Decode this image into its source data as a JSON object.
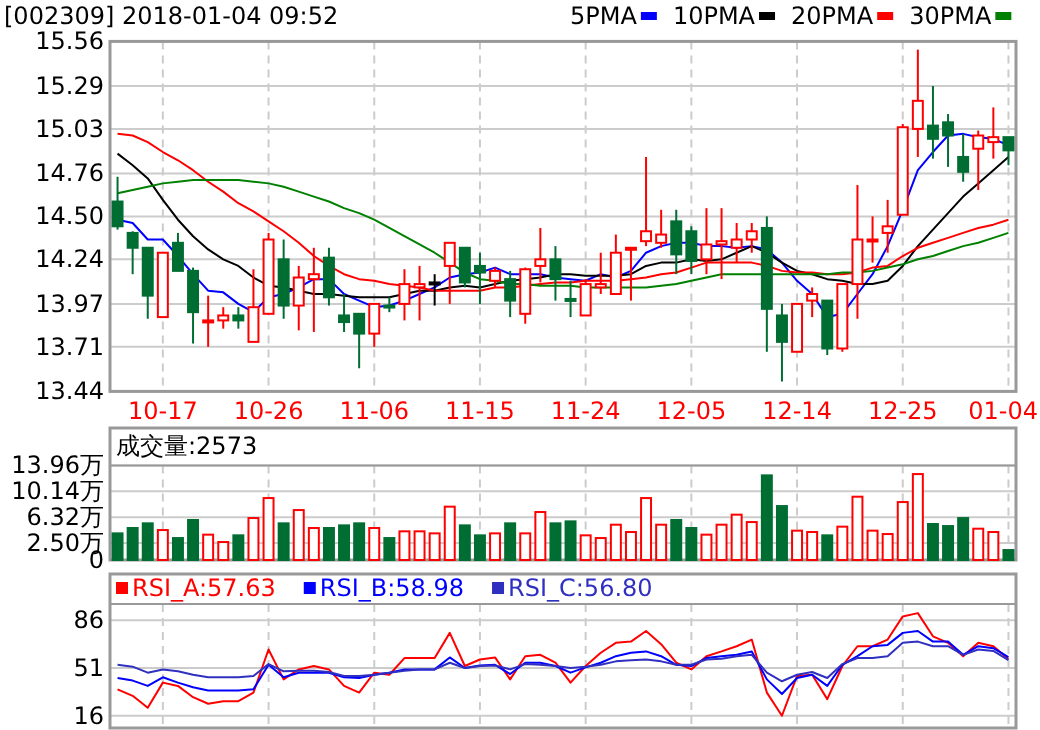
{
  "chart_data": [
    {
      "type": "candlestick",
      "title": "[002309] 2018-01-04 09:52",
      "legend": "top",
      "grid": true,
      "categories": [
        null,
        null,
        null,
        "10-17",
        null,
        null,
        null,
        null,
        null,
        null,
        "10-26",
        null,
        null,
        null,
        null,
        null,
        null,
        "11-06",
        null,
        null,
        null,
        null,
        null,
        null,
        "11-15",
        null,
        null,
        null,
        null,
        null,
        null,
        "11-24",
        null,
        null,
        null,
        null,
        null,
        null,
        "12-05",
        null,
        null,
        null,
        null,
        null,
        null,
        "12-14",
        null,
        null,
        null,
        null,
        null,
        null,
        "12-25",
        null,
        null,
        null,
        null,
        null,
        null,
        "01-04"
      ],
      "ohlc": [
        [
          14.59,
          14.74,
          14.42,
          14.44
        ],
        [
          14.4,
          14.41,
          14.15,
          14.31
        ],
        [
          14.31,
          14.31,
          13.88,
          14.02
        ],
        [
          13.89,
          14.28,
          13.89,
          14.28
        ],
        [
          14.34,
          14.4,
          14.17,
          14.17
        ],
        [
          14.17,
          14.19,
          13.73,
          13.92
        ],
        [
          13.86,
          14.02,
          13.71,
          13.87
        ],
        [
          13.87,
          13.95,
          13.82,
          13.9
        ],
        [
          13.9,
          13.95,
          13.82,
          13.87
        ],
        [
          13.74,
          14.18,
          13.74,
          13.95
        ],
        [
          13.91,
          14.4,
          13.91,
          14.36
        ],
        [
          14.24,
          14.36,
          13.88,
          13.96
        ],
        [
          13.96,
          14.2,
          13.81,
          14.13
        ],
        [
          14.12,
          14.31,
          13.8,
          14.15
        ],
        [
          14.25,
          14.31,
          13.96,
          14.01
        ],
        [
          13.9,
          14.03,
          13.8,
          13.86
        ],
        [
          13.91,
          13.91,
          13.58,
          13.79
        ],
        [
          13.79,
          13.97,
          13.71,
          13.97
        ],
        [
          13.96,
          14.01,
          13.92,
          13.95
        ],
        [
          13.97,
          14.18,
          13.87,
          14.09
        ],
        [
          14.07,
          14.2,
          13.87,
          14.09
        ],
        [
          14.1,
          14.15,
          13.96,
          14.1
        ],
        [
          14.2,
          14.34,
          13.97,
          14.34
        ],
        [
          14.31,
          14.31,
          14.07,
          14.1
        ],
        [
          14.2,
          14.28,
          13.97,
          14.16
        ],
        [
          14.11,
          14.19,
          14.07,
          14.17
        ],
        [
          14.12,
          14.17,
          13.89,
          13.99
        ],
        [
          13.91,
          14.19,
          13.85,
          14.18
        ],
        [
          14.2,
          14.43,
          14.1,
          14.24
        ],
        [
          14.24,
          14.32,
          13.99,
          14.12
        ],
        [
          14.0,
          14.11,
          13.89,
          13.99
        ],
        [
          13.9,
          14.12,
          13.9,
          14.09
        ],
        [
          14.07,
          14.28,
          14.03,
          14.09
        ],
        [
          14.03,
          14.39,
          14.03,
          14.28
        ],
        [
          14.3,
          14.31,
          13.99,
          14.31
        ],
        [
          14.35,
          14.86,
          14.32,
          14.41
        ],
        [
          14.34,
          14.54,
          14.31,
          14.39
        ],
        [
          14.47,
          14.54,
          14.15,
          14.27
        ],
        [
          14.41,
          14.44,
          14.15,
          14.23
        ],
        [
          14.24,
          14.55,
          14.15,
          14.33
        ],
        [
          14.33,
          14.55,
          14.12,
          14.35
        ],
        [
          14.31,
          14.46,
          14.22,
          14.36
        ],
        [
          14.36,
          14.46,
          14.28,
          14.41
        ],
        [
          14.43,
          14.5,
          13.68,
          13.94
        ],
        [
          13.9,
          13.97,
          13.5,
          13.74
        ],
        [
          13.68,
          13.97,
          13.68,
          13.97
        ],
        [
          13.99,
          14.07,
          13.89,
          14.03
        ],
        [
          13.99,
          13.99,
          13.66,
          13.7
        ],
        [
          13.7,
          14.09,
          13.68,
          14.09
        ],
        [
          14.09,
          14.69,
          13.88,
          14.36
        ],
        [
          14.35,
          14.5,
          14.22,
          14.36
        ],
        [
          14.4,
          14.6,
          14.28,
          14.44
        ],
        [
          14.51,
          15.06,
          14.51,
          15.04
        ],
        [
          15.03,
          15.51,
          14.86,
          15.2
        ],
        [
          15.05,
          15.29,
          14.85,
          14.97
        ],
        [
          15.07,
          15.12,
          14.8,
          14.99
        ],
        [
          14.86,
          15.0,
          14.71,
          14.77
        ],
        [
          14.91,
          15.02,
          14.66,
          14.99
        ],
        [
          14.95,
          15.16,
          14.85,
          14.98
        ],
        [
          14.98,
          14.98,
          14.81,
          14.9
        ]
      ],
      "colors": [
        "#006d32",
        "#006d32",
        "#006d32",
        "#ff0000",
        "#006d32",
        "#006d32",
        "#ff0000",
        "#ff0000",
        "#006d32",
        "#ff0000",
        "#ff0000",
        "#006d32",
        "#ff0000",
        "#ff0000",
        "#006d32",
        "#006d32",
        "#006d32",
        "#ff0000",
        "#006d32",
        "#ff0000",
        "#ff0000",
        "#000000",
        "#ff0000",
        "#006d32",
        "#006d32",
        "#ff0000",
        "#006d32",
        "#ff0000",
        "#ff0000",
        "#006d32",
        "#006d32",
        "#ff0000",
        "#ff0000",
        "#ff0000",
        "#ff0000",
        "#ff0000",
        "#ff0000",
        "#006d32",
        "#006d32",
        "#ff0000",
        "#ff0000",
        "#ff0000",
        "#ff0000",
        "#006d32",
        "#006d32",
        "#ff0000",
        "#ff0000",
        "#006d32",
        "#ff0000",
        "#ff0000",
        "#ff0000",
        "#ff0000",
        "#ff0000",
        "#ff0000",
        "#006d32",
        "#006d32",
        "#006d32",
        "#ff0000",
        "#ff0000",
        "#006d32"
      ],
      "series": [
        {
          "name": "5PMA",
          "type": "line",
          "color": "#0000ff",
          "values": [
            14.48,
            14.46,
            14.36,
            14.36,
            14.26,
            14.15,
            14.05,
            14.04,
            13.97,
            13.92,
            14.01,
            14.03,
            14.07,
            14.12,
            14.12,
            14.03,
            13.99,
            13.95,
            13.96,
            13.99,
            14.03,
            14.07,
            14.13,
            14.15,
            14.16,
            14.19,
            14.15,
            14.15,
            14.15,
            14.13,
            14.12,
            14.11,
            14.15,
            14.13,
            14.17,
            14.28,
            14.32,
            14.34,
            14.34,
            14.32,
            14.32,
            14.31,
            14.32,
            14.3,
            14.22,
            14.11,
            14.03,
            13.89,
            13.91,
            14.03,
            14.15,
            14.32,
            14.54,
            14.78,
            14.89,
            14.99,
            15.0,
            14.98,
            14.97,
            14.93
          ]
        },
        {
          "name": "10PMA",
          "type": "line",
          "color": "#000000",
          "values": [
            14.88,
            14.81,
            14.73,
            14.6,
            14.48,
            14.38,
            14.3,
            14.24,
            14.2,
            14.13,
            14.08,
            14.07,
            14.05,
            14.03,
            14.03,
            14.02,
            14.01,
            14.01,
            14.01,
            14.03,
            14.05,
            14.05,
            14.07,
            14.08,
            14.07,
            14.09,
            14.11,
            14.12,
            14.13,
            14.15,
            14.15,
            14.14,
            14.14,
            14.14,
            14.15,
            14.2,
            14.22,
            14.22,
            14.24,
            14.23,
            14.24,
            14.28,
            14.32,
            14.28,
            14.22,
            14.17,
            14.15,
            14.12,
            14.11,
            14.09,
            14.09,
            14.11,
            14.2,
            14.32,
            14.42,
            14.52,
            14.62,
            14.7,
            14.78,
            14.86
          ]
        },
        {
          "name": "20PMA",
          "type": "line",
          "color": "#ff0000",
          "values": [
            15.0,
            14.99,
            14.95,
            14.89,
            14.84,
            14.78,
            14.71,
            14.65,
            14.58,
            14.53,
            14.47,
            14.41,
            14.34,
            14.26,
            14.2,
            14.15,
            14.12,
            14.11,
            14.09,
            14.08,
            14.07,
            14.05,
            14.05,
            14.05,
            14.05,
            14.07,
            14.07,
            14.08,
            14.09,
            14.1,
            14.1,
            14.11,
            14.11,
            14.11,
            14.12,
            14.13,
            14.15,
            14.16,
            14.19,
            14.22,
            14.22,
            14.22,
            14.22,
            14.2,
            14.17,
            14.16,
            14.16,
            14.15,
            14.15,
            14.16,
            14.19,
            14.2,
            14.26,
            14.31,
            14.34,
            14.37,
            14.4,
            14.43,
            14.45,
            14.48
          ]
        },
        {
          "name": "30PMA",
          "type": "line",
          "color": "#008000",
          "values": [
            14.64,
            14.66,
            14.68,
            14.7,
            14.71,
            14.72,
            14.72,
            14.72,
            14.72,
            14.71,
            14.7,
            14.68,
            14.65,
            14.62,
            14.59,
            14.55,
            14.52,
            14.48,
            14.43,
            14.38,
            14.33,
            14.28,
            14.22,
            14.16,
            14.12,
            14.11,
            14.09,
            14.09,
            14.08,
            14.08,
            14.08,
            14.07,
            14.07,
            14.07,
            14.07,
            14.07,
            14.08,
            14.09,
            14.11,
            14.13,
            14.15,
            14.15,
            14.15,
            14.15,
            14.15,
            14.15,
            14.15,
            14.15,
            14.16,
            14.16,
            14.17,
            14.19,
            14.21,
            14.24,
            14.26,
            14.29,
            14.32,
            14.34,
            14.37,
            14.4
          ]
        }
      ],
      "ylim": [
        13.44,
        15.56
      ],
      "yticks": [
        15.56,
        15.29,
        15.03,
        14.76,
        {
          "value": 14.5,
          "label": "14.50"
        },
        14.24,
        13.97,
        13.71,
        13.44
      ]
    },
    {
      "type": "bar",
      "title": "成交量:2573",
      "grid": true,
      "categories": [
        null,
        null,
        null,
        null,
        null,
        null,
        null,
        null,
        null,
        null,
        null,
        null,
        null,
        null,
        null,
        null,
        null,
        null,
        null,
        null,
        null,
        null,
        null,
        null,
        null,
        null,
        null,
        null,
        null,
        null,
        null,
        null,
        null,
        null,
        null,
        null,
        null,
        null,
        null,
        null,
        null,
        null,
        null,
        null,
        null,
        null,
        null,
        null,
        null,
        null,
        null,
        null,
        null,
        null,
        null,
        null,
        null,
        null,
        null,
        null
      ],
      "values": [
        3.93,
        4.72,
        5.41,
        4.42,
        3.24,
        5.9,
        3.74,
        2.65,
        3.64,
        6.19,
        9.14,
        5.41,
        7.37,
        4.72,
        4.72,
        5.11,
        5.41,
        4.72,
        3.24,
        4.23,
        4.23,
        3.93,
        7.87,
        5.11,
        3.64,
        3.93,
        5.41,
        3.93,
        7.08,
        5.41,
        5.7,
        3.64,
        3.24,
        5.21,
        4.13,
        9.14,
        5.21,
        5.9,
        4.72,
        3.74,
        5.21,
        6.69,
        5.6,
        12.49,
        7.96,
        4.33,
        4.13,
        3.64,
        4.92,
        9.34,
        4.33,
        3.83,
        8.55,
        12.68,
        5.31,
        5.01,
        6.19,
        4.62,
        4.13,
        1.47
      ],
      "colors": [
        "#006d32",
        "#006d32",
        "#006d32",
        "#ff0000",
        "#006d32",
        "#006d32",
        "#ff0000",
        "#ff0000",
        "#006d32",
        "#ff0000",
        "#ff0000",
        "#006d32",
        "#ff0000",
        "#ff0000",
        "#006d32",
        "#006d32",
        "#006d32",
        "#ff0000",
        "#006d32",
        "#ff0000",
        "#ff0000",
        "#ff0000",
        "#ff0000",
        "#006d32",
        "#006d32",
        "#ff0000",
        "#006d32",
        "#ff0000",
        "#ff0000",
        "#006d32",
        "#006d32",
        "#ff0000",
        "#ff0000",
        "#ff0000",
        "#ff0000",
        "#ff0000",
        "#ff0000",
        "#006d32",
        "#006d32",
        "#ff0000",
        "#ff0000",
        "#ff0000",
        "#ff0000",
        "#006d32",
        "#006d32",
        "#ff0000",
        "#ff0000",
        "#006d32",
        "#ff0000",
        "#ff0000",
        "#ff0000",
        "#ff0000",
        "#ff0000",
        "#ff0000",
        "#006d32",
        "#006d32",
        "#006d32",
        "#ff0000",
        "#ff0000",
        "#006d32"
      ],
      "ylim": [
        0,
        13.96
      ],
      "yticks": [
        {
          "value": 13.96,
          "label": "13.96万"
        },
        {
          "value": 10.14,
          "label": "10.14万"
        },
        {
          "value": 6.32,
          "label": "6.32万"
        },
        {
          "value": 2.5,
          "label": "2.50万"
        },
        0
      ]
    },
    {
      "type": "line",
      "legend": "top",
      "grid": true,
      "categories": [
        null,
        null,
        null,
        null,
        null,
        null,
        null,
        null,
        null,
        null,
        null,
        null,
        null,
        null,
        null,
        null,
        null,
        null,
        null,
        null,
        null,
        null,
        null,
        null,
        null,
        null,
        null,
        null,
        null,
        null,
        null,
        null,
        null,
        null,
        null,
        null,
        null,
        null,
        null,
        null,
        null,
        null,
        null,
        null,
        null,
        null,
        null,
        null,
        null,
        null,
        null,
        null,
        null,
        null,
        null,
        null,
        null,
        null,
        null,
        null
      ],
      "series": [
        {
          "name": "RSI_A:57.63",
          "color": "#ff0000",
          "values": [
            35.4,
            30.6,
            21.8,
            40.3,
            37.9,
            29.6,
            24.8,
            26.7,
            26.7,
            33.0,
            64.6,
            42.7,
            50.0,
            52.5,
            50.0,
            37.9,
            33.0,
            47.6,
            46.1,
            58.3,
            58.3,
            58.3,
            76.8,
            52.5,
            57.3,
            58.8,
            42.7,
            59.7,
            60.7,
            54.9,
            40.3,
            52.5,
            62.2,
            69.5,
            70.4,
            78.2,
            68.5,
            54.9,
            50.0,
            59.7,
            63.2,
            67.0,
            71.9,
            33.0,
            16.0,
            45.2,
            46.1,
            28.2,
            52.5,
            67.0,
            67.0,
            71.9,
            88.9,
            91.3,
            74.3,
            69.5,
            59.7,
            69.5,
            67.0,
            57.63
          ]
        },
        {
          "name": "RSI_B:58.98",
          "color": "#0000ff",
          "values": [
            43.7,
            41.8,
            37.9,
            44.2,
            40.3,
            36.9,
            34.5,
            34.5,
            34.5,
            35.4,
            53.4,
            44.2,
            47.6,
            47.6,
            47.6,
            44.2,
            43.7,
            46.1,
            47.6,
            50.0,
            50.0,
            50.0,
            58.8,
            51.0,
            52.9,
            53.4,
            46.6,
            54.9,
            54.9,
            52.5,
            47.6,
            51.5,
            54.9,
            59.7,
            62.2,
            63.2,
            59.7,
            53.4,
            52.5,
            58.3,
            59.7,
            60.7,
            63.2,
            42.7,
            32.0,
            43.7,
            46.1,
            37.9,
            53.4,
            59.7,
            67.0,
            68.0,
            76.8,
            78.2,
            70.4,
            70.4,
            60.7,
            67.0,
            65.6,
            58.98
          ]
        },
        {
          "name": "RSI_C:56.80",
          "color": "#3030c0",
          "values": [
            53.4,
            52.0,
            47.6,
            50.0,
            48.6,
            46.1,
            44.2,
            44.2,
            44.2,
            45.2,
            53.9,
            48.6,
            49.1,
            49.1,
            48.1,
            45.2,
            45.2,
            46.1,
            47.6,
            49.1,
            50.0,
            50.0,
            54.9,
            51.0,
            52.5,
            52.9,
            50.0,
            53.9,
            53.4,
            52.5,
            51.0,
            52.0,
            53.4,
            55.9,
            56.8,
            57.3,
            55.9,
            53.4,
            53.4,
            57.3,
            57.8,
            59.7,
            60.7,
            47.6,
            41.3,
            46.1,
            48.1,
            43.7,
            53.9,
            58.3,
            58.3,
            59.7,
            69.5,
            70.4,
            67.0,
            67.0,
            60.7,
            64.6,
            63.6,
            56.8
          ]
        }
      ],
      "ylim": [
        7,
        98
      ],
      "yticks": [
        86,
        51,
        16
      ]
    }
  ]
}
